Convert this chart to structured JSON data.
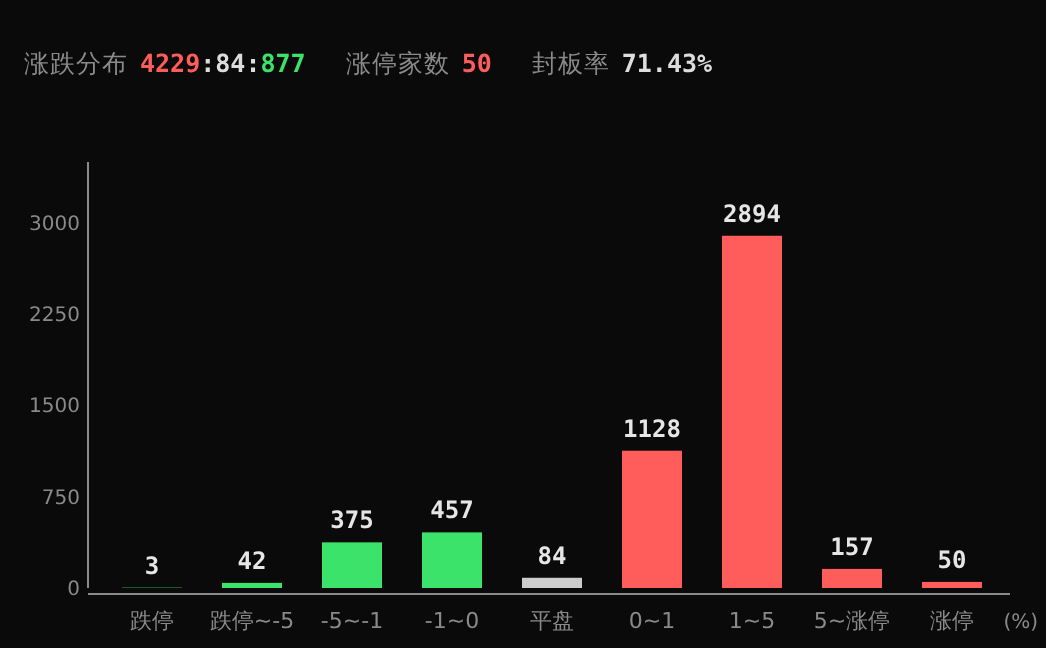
{
  "chart_data": {
    "type": "bar",
    "categories": [
      "跌停",
      "跌停~-5",
      "-5~-1",
      "-1~0",
      "平盘",
      "0~1",
      "1~5",
      "5~涨停",
      "涨停"
    ],
    "values": [
      3,
      42,
      375,
      457,
      84,
      1128,
      2894,
      157,
      50
    ],
    "colors": [
      "#3be36a",
      "#3be36a",
      "#3be36a",
      "#3be36a",
      "#cccccc",
      "#ff5c5c",
      "#ff5c5c",
      "#ff5c5c",
      "#ff5c5c"
    ],
    "ylim": [
      0,
      3500
    ],
    "yticks": [
      0,
      750,
      1500,
      2250,
      3000
    ],
    "data_labels": true,
    "grid": false,
    "xlabel": "(%)",
    "annotations": [
      "涨跌分布",
      "4229",
      ":",
      "84",
      ":",
      "877",
      "涨停家数",
      "50",
      "封板率",
      "71.43%"
    ]
  }
}
